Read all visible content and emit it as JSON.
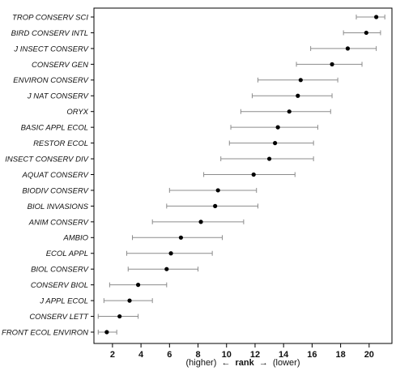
{
  "chart_data": {
    "type": "scatter",
    "subtype": "dot-and-whisker",
    "title": "",
    "xlabel": {
      "left": "(higher)",
      "left_arrow": "←",
      "main": "rank",
      "right_arrow": "→",
      "right": "(lower)"
    },
    "ylabel": "",
    "xlim": [
      0.7,
      21.6
    ],
    "x_ticks": [
      2,
      4,
      6,
      8,
      10,
      12,
      14,
      16,
      18,
      20
    ],
    "x_tick_labels": [
      "2",
      "4",
      "6",
      "8",
      "10",
      "12",
      "14",
      "16",
      "18",
      "20"
    ],
    "grid": false,
    "legend": "none",
    "colors": {
      "point": "#000000",
      "whisker": "#8c8c8c",
      "frame": "#000000"
    },
    "journals": [
      {
        "name": "TROP CONSERV SCI",
        "rank": 20.5,
        "low": 19.1,
        "high": 21.1
      },
      {
        "name": "BIRD CONSERV INTL",
        "rank": 19.8,
        "low": 18.2,
        "high": 20.8
      },
      {
        "name": "J INSECT CONSERV",
        "rank": 18.5,
        "low": 15.9,
        "high": 20.5
      },
      {
        "name": "CONSERV GEN",
        "rank": 17.4,
        "low": 14.9,
        "high": 19.5
      },
      {
        "name": "ENVIRON CONSERV",
        "rank": 15.2,
        "low": 12.2,
        "high": 17.8
      },
      {
        "name": "J NAT CONSERV",
        "rank": 15.0,
        "low": 11.8,
        "high": 17.4
      },
      {
        "name": "ORYX",
        "rank": 14.4,
        "low": 11.0,
        "high": 17.3
      },
      {
        "name": "BASIC APPL ECOL",
        "rank": 13.6,
        "low": 10.3,
        "high": 16.4
      },
      {
        "name": "RESTOR ECOL",
        "rank": 13.4,
        "low": 10.2,
        "high": 16.1
      },
      {
        "name": "INSECT CONSERV DIV",
        "rank": 13.0,
        "low": 9.6,
        "high": 16.1
      },
      {
        "name": "AQUAT CONSERV",
        "rank": 11.9,
        "low": 8.4,
        "high": 14.8
      },
      {
        "name": "BIODIV CONSERV",
        "rank": 9.4,
        "low": 6.0,
        "high": 12.1
      },
      {
        "name": "BIOL INVASIONS",
        "rank": 9.2,
        "low": 5.8,
        "high": 12.2
      },
      {
        "name": "ANIM CONSERV",
        "rank": 8.2,
        "low": 4.8,
        "high": 11.2
      },
      {
        "name": "AMBIO",
        "rank": 6.8,
        "low": 3.4,
        "high": 9.7
      },
      {
        "name": "ECOL APPL",
        "rank": 6.1,
        "low": 3.0,
        "high": 9.0
      },
      {
        "name": "BIOL CONSERV",
        "rank": 5.8,
        "low": 3.1,
        "high": 8.0
      },
      {
        "name": "CONSERV BIOL",
        "rank": 3.8,
        "low": 1.8,
        "high": 5.8
      },
      {
        "name": "J APPL ECOL",
        "rank": 3.2,
        "low": 1.4,
        "high": 4.8
      },
      {
        "name": "CONSERV LETT",
        "rank": 2.5,
        "low": 1.0,
        "high": 3.8
      },
      {
        "name": "FRONT ECOL ENVIRON",
        "rank": 1.6,
        "low": 1.0,
        "high": 2.3
      }
    ]
  }
}
